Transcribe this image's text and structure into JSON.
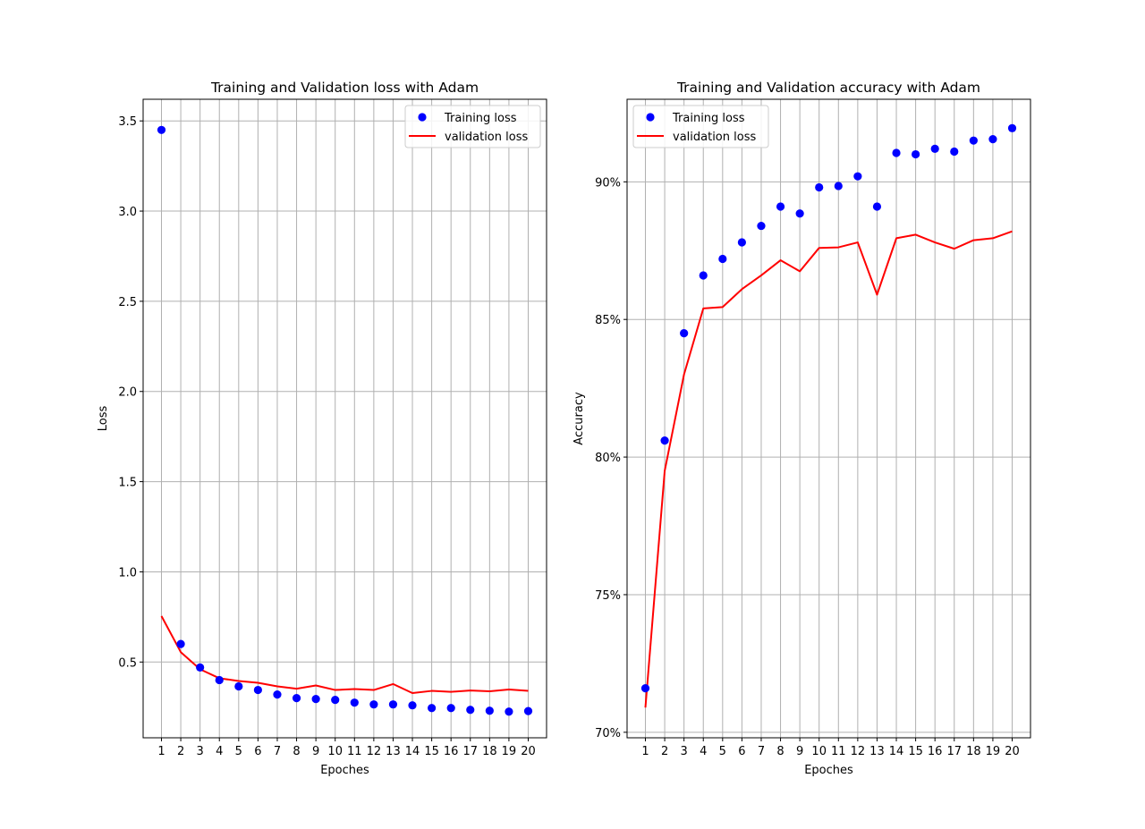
{
  "chart_data": [
    {
      "type": "line",
      "title": "Training and Validation loss with Adam",
      "xlabel": "Epoches",
      "ylabel": "Loss",
      "x": [
        1,
        2,
        3,
        4,
        5,
        6,
        7,
        8,
        9,
        10,
        11,
        12,
        13,
        14,
        15,
        16,
        17,
        18,
        19,
        20
      ],
      "xlim": [
        0.05,
        20.95
      ],
      "ylim": [
        0.08,
        3.62
      ],
      "yticks": [
        0.5,
        1.0,
        1.5,
        2.0,
        2.5,
        3.0,
        3.5
      ],
      "ytick_labels": [
        "0.5",
        "1.0",
        "1.5",
        "2.0",
        "2.5",
        "3.0",
        "3.5"
      ],
      "grid": true,
      "legend_position": "upper right",
      "series": [
        {
          "name": "Training loss",
          "style": "markers",
          "color": "#0000ff",
          "values": [
            3.45,
            0.6,
            0.47,
            0.4,
            0.365,
            0.345,
            0.32,
            0.3,
            0.295,
            0.29,
            0.275,
            0.265,
            0.265,
            0.26,
            0.245,
            0.245,
            0.235,
            0.23,
            0.225,
            0.228
          ]
        },
        {
          "name": "validation loss",
          "style": "line",
          "color": "#ff0000",
          "values": [
            0.755,
            0.555,
            0.46,
            0.41,
            0.395,
            0.385,
            0.365,
            0.352,
            0.37,
            0.345,
            0.35,
            0.345,
            0.378,
            0.328,
            0.34,
            0.335,
            0.342,
            0.338,
            0.348,
            0.34
          ]
        }
      ]
    },
    {
      "type": "line",
      "title": "Training and Validation accuracy with Adam",
      "xlabel": "Epoches",
      "ylabel": "Accuracy",
      "x": [
        1,
        2,
        3,
        4,
        5,
        6,
        7,
        8,
        9,
        10,
        11,
        12,
        13,
        14,
        15,
        16,
        17,
        18,
        19,
        20
      ],
      "xlim": [
        0.05,
        20.95
      ],
      "ylim": [
        69.8,
        93.0
      ],
      "yticks": [
        70,
        75,
        80,
        85,
        90
      ],
      "ytick_labels": [
        "70%",
        "75%",
        "80%",
        "85%",
        "90%"
      ],
      "grid": true,
      "legend_position": "upper left",
      "series": [
        {
          "name": "Training loss",
          "style": "markers",
          "color": "#0000ff",
          "values": [
            71.6,
            80.6,
            84.5,
            86.6,
            87.2,
            87.8,
            88.4,
            89.1,
            88.85,
            89.8,
            89.85,
            90.2,
            89.1,
            91.05,
            91.0,
            91.2,
            91.1,
            91.5,
            91.55,
            91.95
          ]
        },
        {
          "name": "validation loss",
          "style": "line",
          "color": "#ff0000",
          "values": [
            70.9,
            79.5,
            83.0,
            85.4,
            85.45,
            86.1,
            86.6,
            87.15,
            86.75,
            87.6,
            87.62,
            87.8,
            85.9,
            87.95,
            88.08,
            87.8,
            87.57,
            87.88,
            87.95,
            88.2
          ]
        }
      ]
    }
  ]
}
